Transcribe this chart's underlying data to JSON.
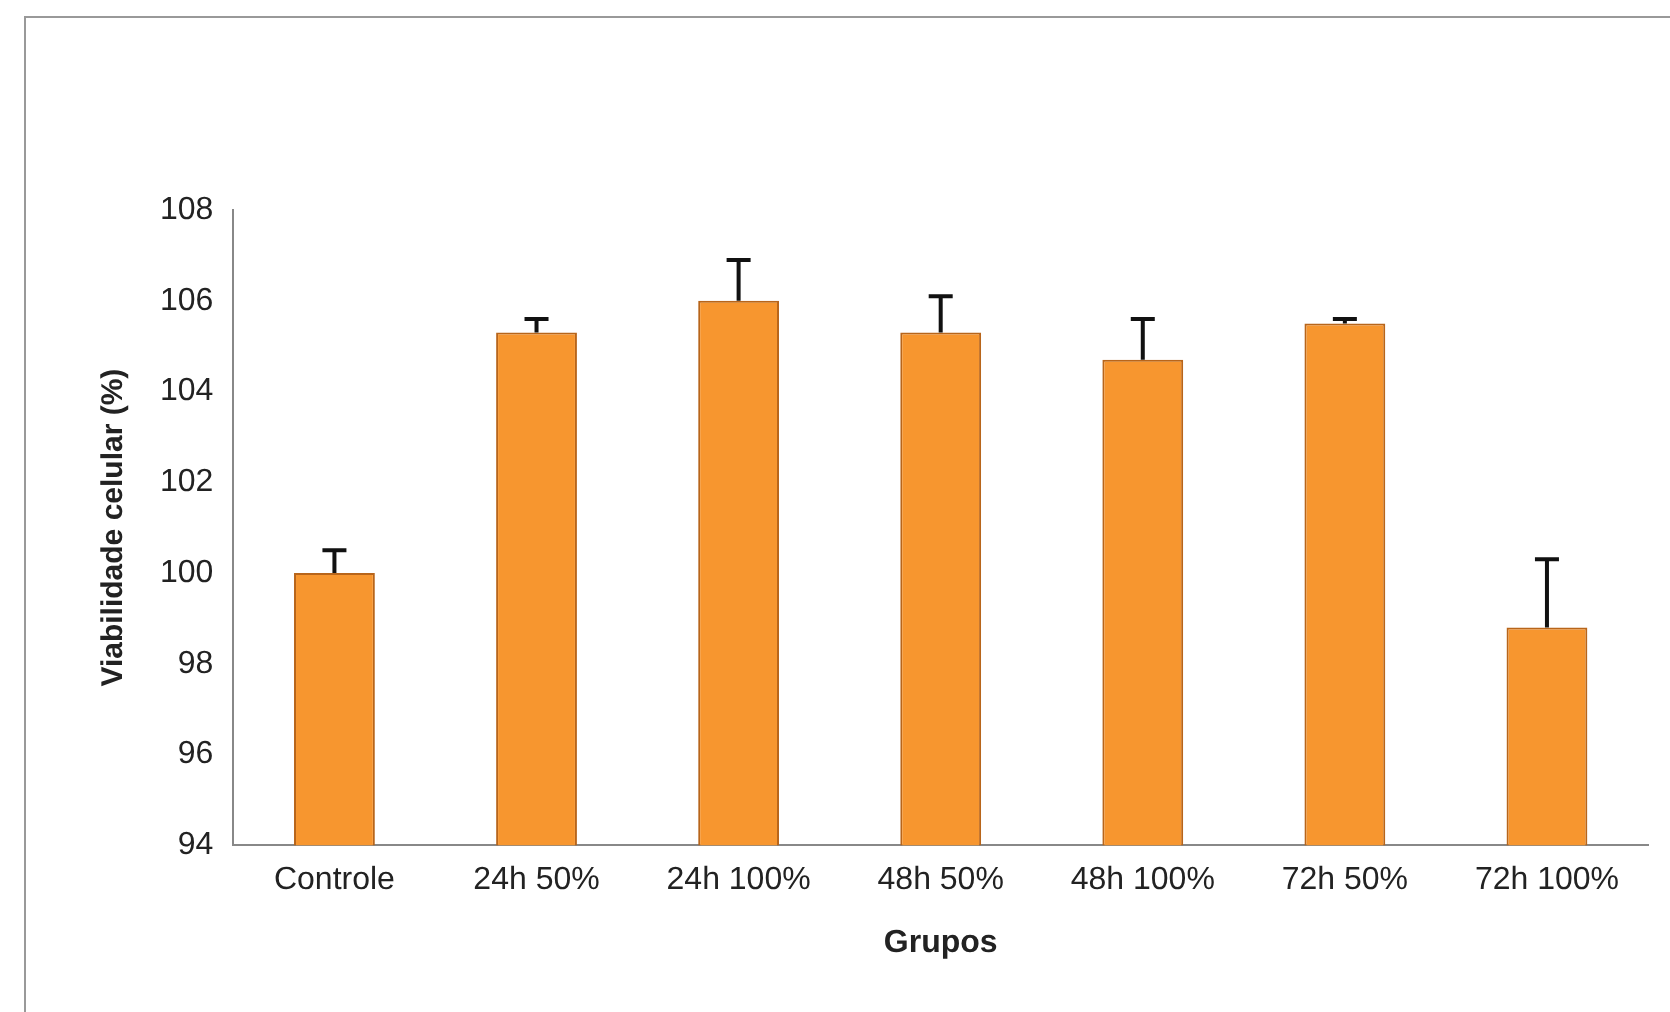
{
  "chart_data": {
    "type": "bar",
    "xlabel": "Grupos",
    "ylabel": "Viabilidade celular (%)",
    "categories": [
      "Controle",
      "24h 50%",
      "24h 100%",
      "48h 50%",
      "48h 100%",
      "72h 50%",
      "72h 100%"
    ],
    "values": [
      100.0,
      105.3,
      106.0,
      105.3,
      104.7,
      105.5,
      98.8
    ],
    "errors": [
      [
        100.0,
        100.5
      ],
      [
        105.3,
        105.6
      ],
      [
        106.0,
        106.9
      ],
      [
        105.3,
        106.1
      ],
      [
        104.7,
        105.6
      ],
      [
        105.5,
        105.6
      ],
      [
        98.8,
        100.3
      ]
    ],
    "color": "#f7962f",
    "ylim": [
      94,
      108
    ],
    "yticks": [
      94,
      96,
      98,
      100,
      102,
      104,
      106,
      108
    ],
    "grid": false,
    "legend": false
  }
}
